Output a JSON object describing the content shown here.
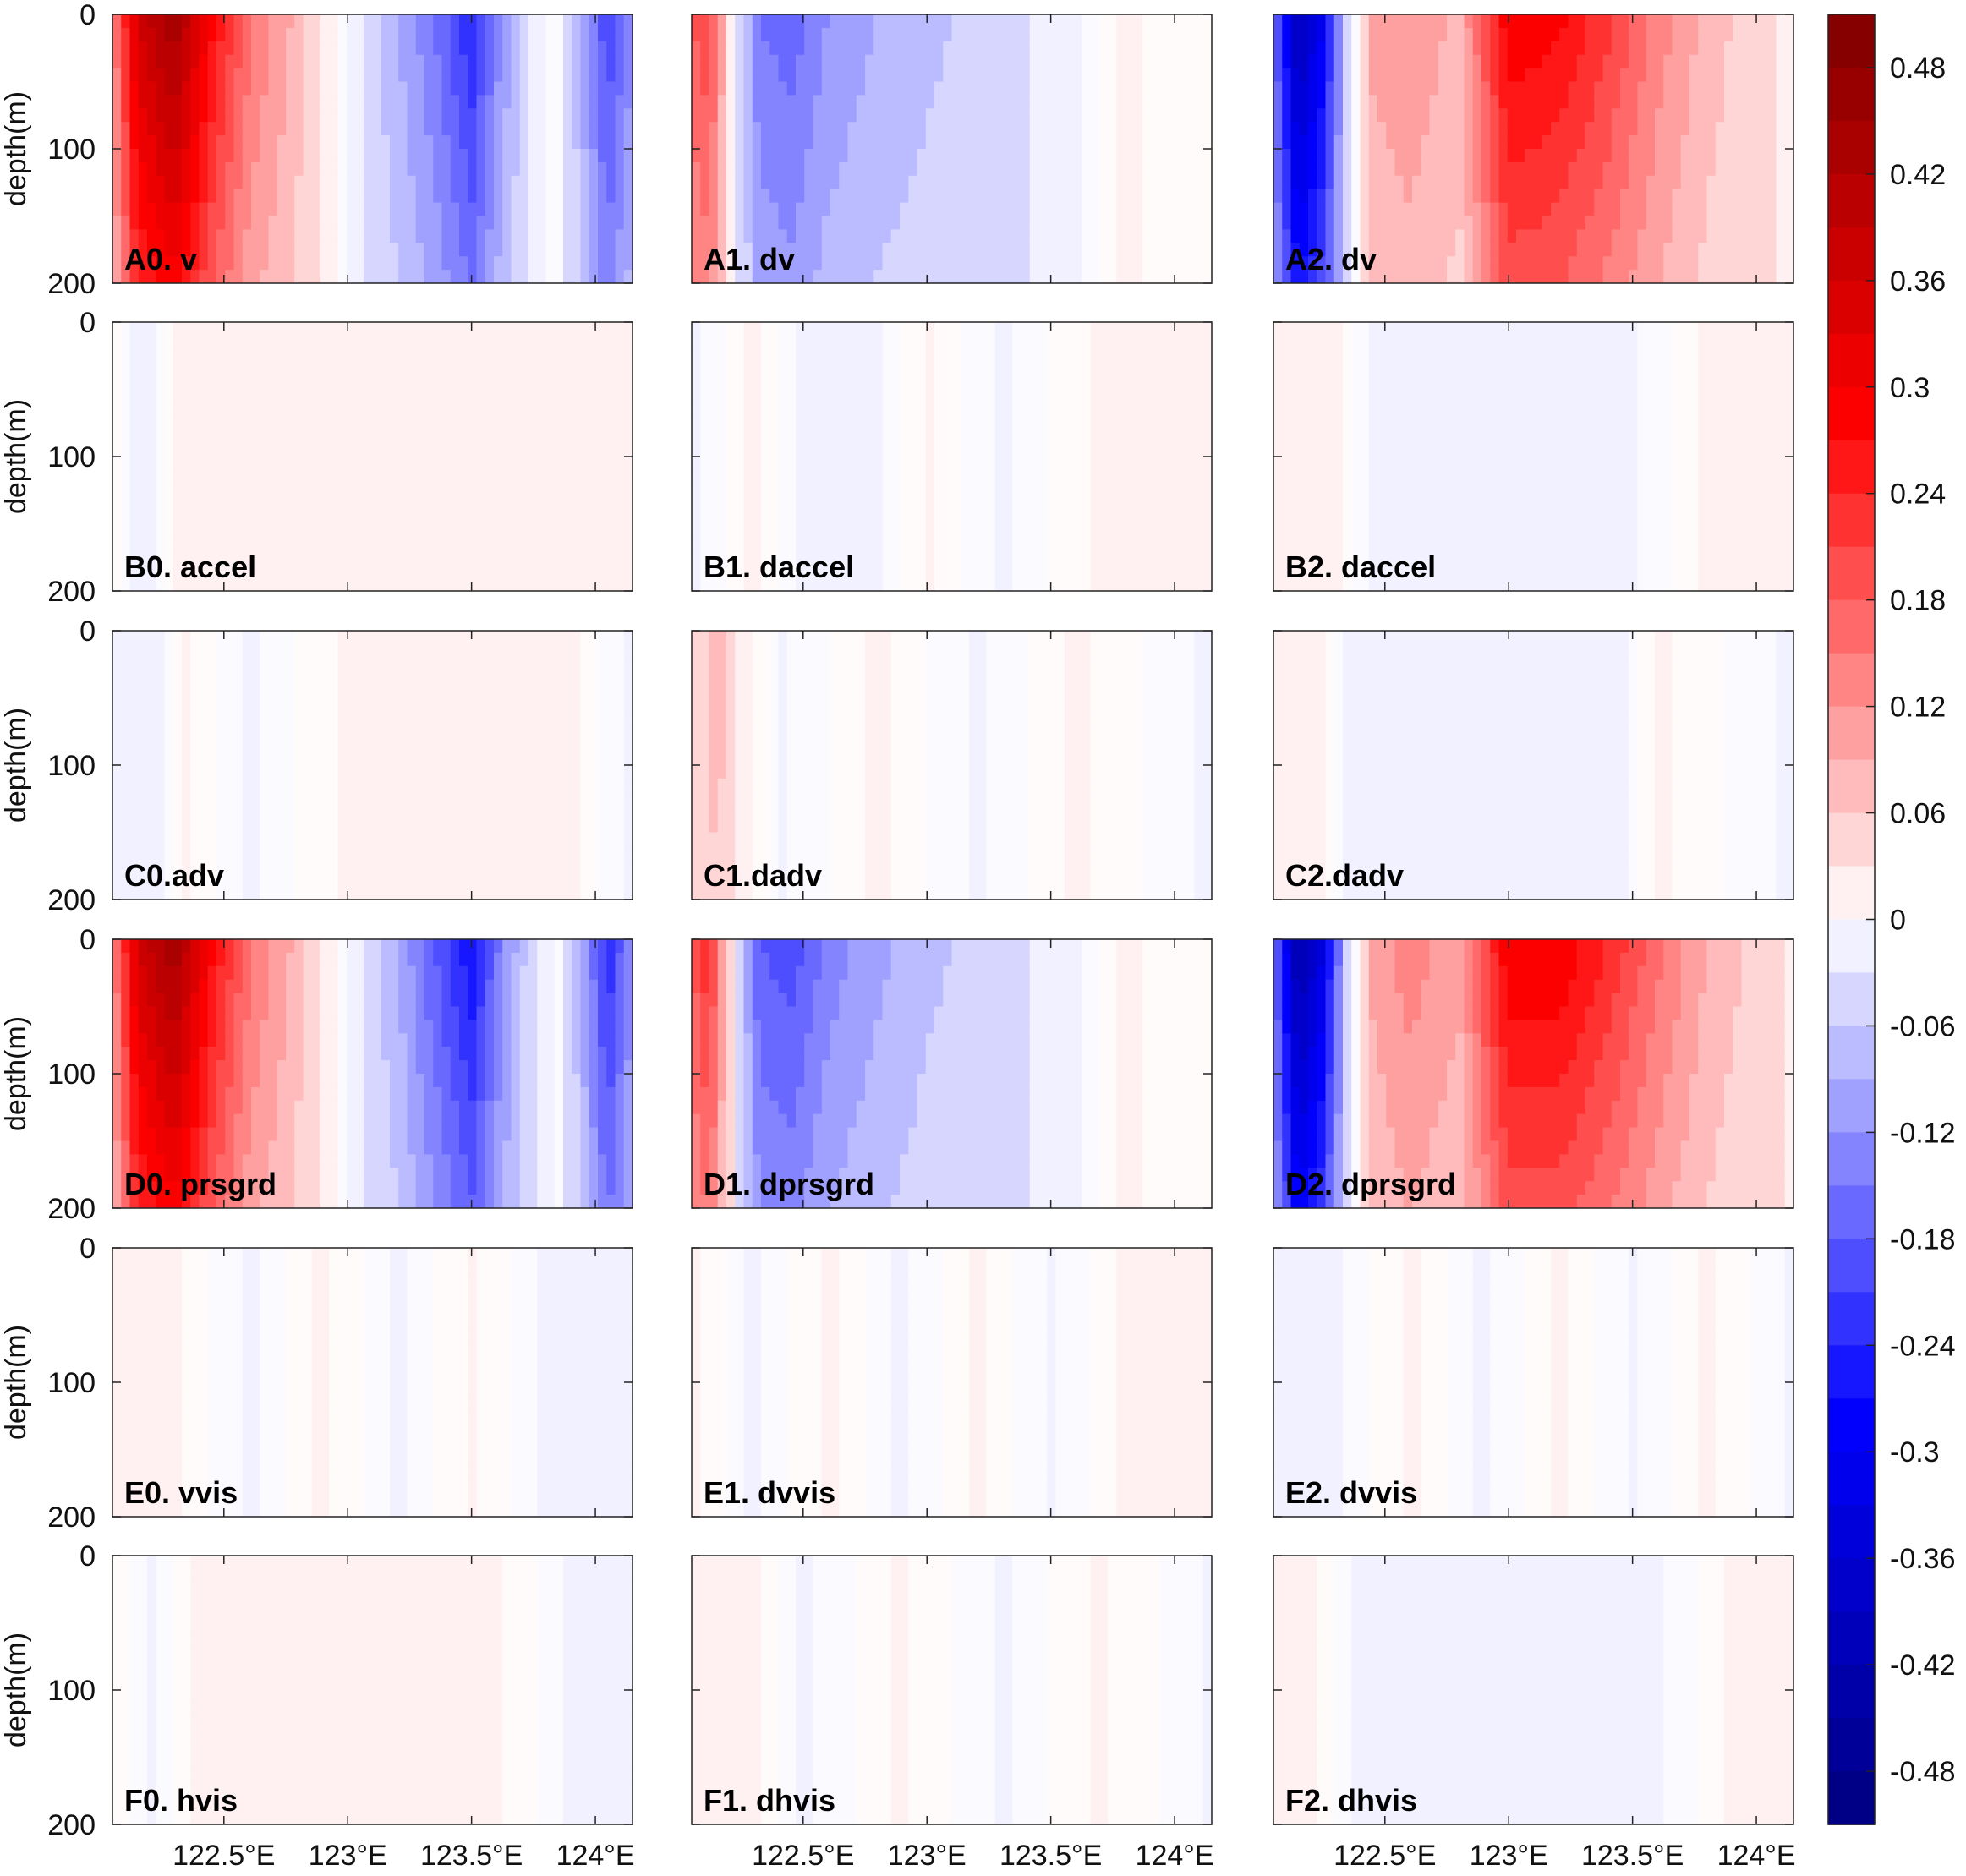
{
  "chart_data": {
    "type": "heatmap",
    "grid": false,
    "ylabel": "depth(m)",
    "y_ticks": [
      "0",
      "100",
      "200"
    ],
    "x_ticks": [
      "122.5°E",
      "123°E",
      "123.5°E",
      "124°E"
    ],
    "x_tick_values": [
      122.5,
      123.0,
      123.5,
      124.0
    ],
    "xlim": [
      122.05,
      124.15
    ],
    "ylim": [
      200,
      0
    ],
    "colorbar": {
      "ticks": [
        "0.48",
        "0.42",
        "0.36",
        "0.3",
        "0.24",
        "0.18",
        "0.12",
        "0.06",
        "0",
        "-0.06",
        "-0.12",
        "-0.18",
        "-0.24",
        "-0.3",
        "-0.36",
        "-0.42",
        "-0.48"
      ],
      "range": [
        -0.51,
        0.51
      ],
      "step": 0.03,
      "neg_color": "#00007f",
      "mid_neg_color": "#0000ff",
      "zero_color": "#ffffff",
      "mid_pos_color": "#ff0000",
      "pos_color": "#7f0000"
    },
    "panels": [
      {
        "label": "A0. v",
        "profile": [
          [
            122.05,
            0.12
          ],
          [
            122.15,
            0.36
          ],
          [
            122.3,
            0.45
          ],
          [
            122.45,
            0.28
          ],
          [
            122.6,
            0.16
          ],
          [
            122.75,
            0.1
          ],
          [
            122.9,
            0.03
          ],
          [
            123.05,
            -0.03
          ],
          [
            123.2,
            -0.09
          ],
          [
            123.35,
            -0.15
          ],
          [
            123.5,
            -0.24
          ],
          [
            123.62,
            -0.12
          ],
          [
            123.75,
            -0.02
          ],
          [
            123.85,
            0.0
          ],
          [
            123.95,
            -0.1
          ],
          [
            124.05,
            -0.21
          ],
          [
            124.15,
            -0.12
          ]
        ]
      },
      {
        "label": "A1. dv",
        "profile": [
          [
            122.05,
            0.18
          ],
          [
            122.12,
            0.21
          ],
          [
            122.22,
            0.0
          ],
          [
            122.32,
            -0.15
          ],
          [
            122.45,
            -0.17
          ],
          [
            122.6,
            -0.12
          ],
          [
            122.8,
            -0.09
          ],
          [
            123.0,
            -0.07
          ],
          [
            123.2,
            -0.05
          ],
          [
            123.4,
            -0.03
          ],
          [
            123.6,
            -0.01
          ],
          [
            123.8,
            0.01
          ],
          [
            124.15,
            0.0
          ]
        ]
      },
      {
        "label": "A2. dv",
        "profile": [
          [
            122.05,
            -0.15
          ],
          [
            122.15,
            -0.42
          ],
          [
            122.25,
            -0.3
          ],
          [
            122.35,
            -0.05
          ],
          [
            122.45,
            0.1
          ],
          [
            122.6,
            0.12
          ],
          [
            122.8,
            0.08
          ],
          [
            123.0,
            0.3
          ],
          [
            123.2,
            0.28
          ],
          [
            123.4,
            0.22
          ],
          [
            123.6,
            0.14
          ],
          [
            123.8,
            0.08
          ],
          [
            124.0,
            0.04
          ],
          [
            124.15,
            0.02
          ]
        ]
      },
      {
        "label": "B0. accel",
        "profile": [
          [
            122.05,
            0.01
          ],
          [
            122.12,
            -0.01
          ],
          [
            122.2,
            -0.02
          ],
          [
            122.3,
            0.01
          ],
          [
            124.15,
            0.01
          ]
        ]
      },
      {
        "label": "B1. daccel",
        "profile": [
          [
            122.05,
            -0.01
          ],
          [
            122.3,
            0.01
          ],
          [
            122.5,
            -0.01
          ],
          [
            122.8,
            -0.01
          ],
          [
            123.0,
            0.01
          ],
          [
            123.3,
            -0.01
          ],
          [
            123.7,
            0.01
          ],
          [
            124.15,
            0.01
          ]
        ]
      },
      {
        "label": "B2. daccel",
        "profile": [
          [
            122.05,
            0.01
          ],
          [
            122.3,
            0.01
          ],
          [
            122.45,
            -0.01
          ],
          [
            123.5,
            -0.01
          ],
          [
            123.8,
            0.01
          ],
          [
            124.15,
            0.01
          ]
        ]
      },
      {
        "label": "C0.adv",
        "profile": [
          [
            122.05,
            -0.01
          ],
          [
            122.2,
            -0.02
          ],
          [
            122.35,
            0.01
          ],
          [
            122.6,
            -0.01
          ],
          [
            123.0,
            0.01
          ],
          [
            123.3,
            0.02
          ],
          [
            123.6,
            0.03
          ],
          [
            123.9,
            0.01
          ],
          [
            124.15,
            -0.01
          ]
        ]
      },
      {
        "label": "C1.dadv",
        "profile": [
          [
            122.05,
            0.02
          ],
          [
            122.15,
            0.09
          ],
          [
            122.25,
            0.02
          ],
          [
            122.4,
            -0.01
          ],
          [
            122.8,
            0.01
          ],
          [
            123.2,
            -0.01
          ],
          [
            123.6,
            0.01
          ],
          [
            124.15,
            -0.01
          ]
        ]
      },
      {
        "label": "C2.dadv",
        "profile": [
          [
            122.05,
            0.01
          ],
          [
            122.2,
            0.02
          ],
          [
            122.35,
            -0.01
          ],
          [
            123.0,
            -0.01
          ],
          [
            123.4,
            -0.02
          ],
          [
            123.6,
            0.01
          ],
          [
            124.15,
            -0.01
          ]
        ]
      },
      {
        "label": "D0. prsgrd",
        "profile": [
          [
            122.05,
            0.12
          ],
          [
            122.15,
            0.36
          ],
          [
            122.3,
            0.45
          ],
          [
            122.45,
            0.28
          ],
          [
            122.6,
            0.16
          ],
          [
            122.75,
            0.1
          ],
          [
            122.9,
            0.03
          ],
          [
            123.05,
            -0.03
          ],
          [
            123.2,
            -0.09
          ],
          [
            123.35,
            -0.18
          ],
          [
            123.5,
            -0.27
          ],
          [
            123.62,
            -0.14
          ],
          [
            123.75,
            -0.03
          ],
          [
            123.85,
            0.0
          ],
          [
            123.95,
            -0.1
          ],
          [
            124.05,
            -0.24
          ],
          [
            124.15,
            -0.12
          ]
        ]
      },
      {
        "label": "D1. dprsgrd",
        "profile": [
          [
            122.05,
            0.18
          ],
          [
            122.12,
            0.24
          ],
          [
            122.22,
            0.0
          ],
          [
            122.32,
            -0.18
          ],
          [
            122.45,
            -0.2
          ],
          [
            122.6,
            -0.14
          ],
          [
            122.8,
            -0.1
          ],
          [
            123.0,
            -0.07
          ],
          [
            123.2,
            -0.05
          ],
          [
            123.4,
            -0.03
          ],
          [
            123.6,
            -0.01
          ],
          [
            123.8,
            0.01
          ],
          [
            124.15,
            0.0
          ]
        ]
      },
      {
        "label": "D2. dprsgrd",
        "profile": [
          [
            122.05,
            -0.15
          ],
          [
            122.15,
            -0.45
          ],
          [
            122.25,
            -0.33
          ],
          [
            122.35,
            -0.05
          ],
          [
            122.45,
            0.1
          ],
          [
            122.6,
            0.14
          ],
          [
            122.8,
            0.1
          ],
          [
            123.0,
            0.3
          ],
          [
            123.2,
            0.3
          ],
          [
            123.4,
            0.24
          ],
          [
            123.6,
            0.16
          ],
          [
            123.8,
            0.09
          ],
          [
            124.0,
            0.05
          ],
          [
            124.15,
            0.02
          ]
        ]
      },
      {
        "label": "E0. vvis",
        "profile": [
          [
            122.05,
            0.01
          ],
          [
            122.3,
            0.01
          ],
          [
            122.6,
            -0.01
          ],
          [
            122.9,
            0.01
          ],
          [
            123.2,
            -0.01
          ],
          [
            123.5,
            0.01
          ],
          [
            123.8,
            -0.01
          ],
          [
            124.15,
            -0.01
          ]
        ]
      },
      {
        "label": "E1. dvvis",
        "profile": [
          [
            122.05,
            0.01
          ],
          [
            122.3,
            -0.01
          ],
          [
            122.6,
            0.01
          ],
          [
            122.9,
            -0.01
          ],
          [
            123.2,
            0.01
          ],
          [
            123.5,
            -0.01
          ],
          [
            123.8,
            0.01
          ],
          [
            124.15,
            0.01
          ]
        ]
      },
      {
        "label": "E2. dvvis",
        "profile": [
          [
            122.05,
            -0.01
          ],
          [
            122.3,
            -0.01
          ],
          [
            122.6,
            0.01
          ],
          [
            122.9,
            -0.01
          ],
          [
            123.2,
            0.01
          ],
          [
            123.5,
            -0.01
          ],
          [
            123.8,
            0.01
          ],
          [
            124.15,
            -0.01
          ]
        ]
      },
      {
        "label": "F0. hvis",
        "profile": [
          [
            122.05,
            0.01
          ],
          [
            122.2,
            -0.01
          ],
          [
            122.4,
            0.01
          ],
          [
            122.8,
            0.01
          ],
          [
            123.2,
            0.01
          ],
          [
            123.6,
            0.01
          ],
          [
            123.9,
            -0.01
          ],
          [
            124.15,
            -0.01
          ]
        ]
      },
      {
        "label": "F1. dhvis",
        "profile": [
          [
            122.05,
            0.01
          ],
          [
            122.3,
            0.01
          ],
          [
            122.5,
            -0.01
          ],
          [
            122.9,
            0.01
          ],
          [
            123.3,
            -0.01
          ],
          [
            123.7,
            0.01
          ],
          [
            124.15,
            -0.01
          ]
        ]
      },
      {
        "label": "F2. dhvis",
        "profile": [
          [
            122.05,
            0.01
          ],
          [
            122.2,
            0.01
          ],
          [
            122.4,
            -0.01
          ],
          [
            122.8,
            -0.01
          ],
          [
            123.2,
            -0.01
          ],
          [
            123.6,
            -0.01
          ],
          [
            123.9,
            0.01
          ],
          [
            124.15,
            0.01
          ]
        ]
      }
    ]
  }
}
